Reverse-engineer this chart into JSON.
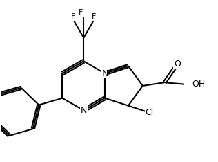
{
  "background_color": "#ffffff",
  "line_color": "#000000",
  "bond_width": 1.5,
  "figsize": [
    3.16,
    2.34
  ],
  "dpi": 100,
  "fs": 9.0,
  "fs_small": 8.0,
  "xlim": [
    0,
    3.16
  ],
  "ylim": [
    0,
    2.34
  ],
  "atoms": {
    "N_pyrazole_label": "N",
    "N_pyrimidine_label": "N",
    "Cl_label": "Cl",
    "OH_label": "OH",
    "O_label": "O",
    "F1_label": "F",
    "F2_label": "F",
    "F3_label": "F"
  }
}
